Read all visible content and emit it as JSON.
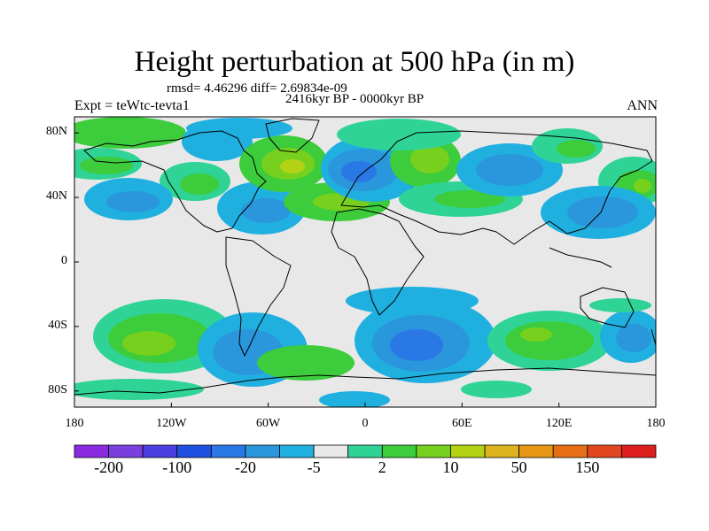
{
  "title": "Height perturbation at 500 hPa (in m)",
  "stats": "rmsd= 4.46296 diff= 2.69834e-09",
  "period": "2416kyr BP - 0000kyr BP",
  "experiment": "Expt = teWtc-tevta1",
  "season": "ANN",
  "lat_ticks": [
    {
      "value": 80,
      "label": "80N"
    },
    {
      "value": 40,
      "label": "40N"
    },
    {
      "value": 0,
      "label": "0"
    },
    {
      "value": -40,
      "label": "40S"
    },
    {
      "value": -80,
      "label": "80S"
    }
  ],
  "lon_ticks": [
    {
      "value": -180,
      "label": "180"
    },
    {
      "value": -120,
      "label": "120W"
    },
    {
      "value": -60,
      "label": "60W"
    },
    {
      "value": 0,
      "label": "0"
    },
    {
      "value": 60,
      "label": "60E"
    },
    {
      "value": 120,
      "label": "120E"
    },
    {
      "value": 180,
      "label": "180"
    }
  ],
  "colorbar": {
    "colors": [
      "#8a2be2",
      "#7b3fe0",
      "#4b3fe0",
      "#1e50e0",
      "#2a78e6",
      "#2a96dc",
      "#20b0e0",
      "#e8e8e8",
      "#2fd396",
      "#3ccc3c",
      "#78d01e",
      "#b4d214",
      "#dcb41e",
      "#e69614",
      "#e66e14",
      "#e2461e",
      "#dc1e1e"
    ],
    "labels": [
      {
        "boundary": 1,
        "text": "-200"
      },
      {
        "boundary": 3,
        "text": "-100"
      },
      {
        "boundary": 5,
        "text": "-20"
      },
      {
        "boundary": 7,
        "text": "-5"
      },
      {
        "boundary": 9,
        "text": "2"
      },
      {
        "boundary": 11,
        "text": "10"
      },
      {
        "boundary": 13,
        "text": "50"
      },
      {
        "boundary": 15,
        "text": "150"
      }
    ]
  },
  "field_levels": {
    "neg_light": "#20b0e0",
    "neg_mid": "#2a96dc",
    "neg_deep": "#2a78e6",
    "neutral": "#e8e8e8",
    "pos_light": "#2fd396",
    "pos_mid": "#3ccc3c",
    "pos_high": "#78d01e",
    "pos_peak": "#b4d214"
  }
}
